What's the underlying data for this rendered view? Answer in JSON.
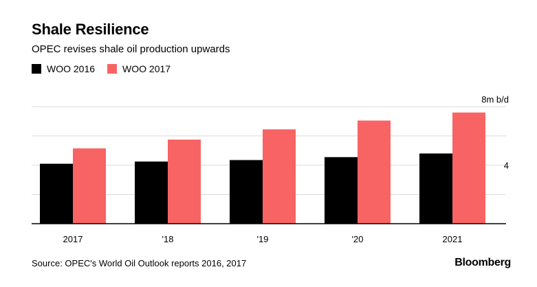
{
  "header": {
    "title": "Shale Resilience",
    "subtitle": "OPEC revises shale oil production upwards"
  },
  "colors": {
    "woo2016": "#000000",
    "woo2017": "#f86464",
    "grid": "#d9d9d9",
    "axis": "#000000"
  },
  "chart_data": {
    "type": "bar",
    "categories": [
      "2017",
      "'18",
      "'19",
      "'20",
      "2021"
    ],
    "series": [
      {
        "name": "WOO 2016",
        "values": [
          4.1,
          4.25,
          4.35,
          4.55,
          4.8
        ]
      },
      {
        "name": "WOO 2017",
        "values": [
          5.15,
          5.75,
          6.45,
          7.05,
          7.6
        ]
      }
    ],
    "ylim": [
      0,
      8
    ],
    "y_ticks": [
      0,
      2,
      4,
      6,
      8
    ],
    "y_tick_labels": [
      "",
      "",
      "4",
      "",
      "8m b/d"
    ],
    "grid": true,
    "legend_position": "top-left"
  },
  "footer": {
    "source": "Source: OPEC's World Oil Outlook reports 2016, 2017",
    "brand": "Bloomberg"
  }
}
